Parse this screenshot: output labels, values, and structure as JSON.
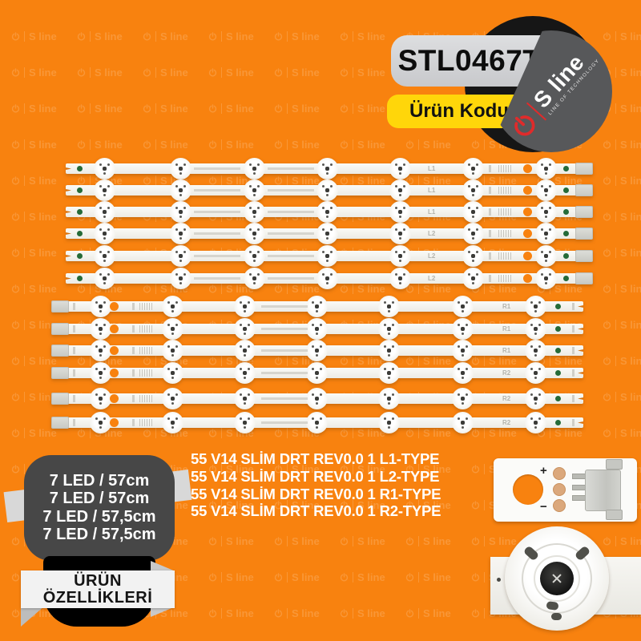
{
  "brand": {
    "watermark_label": "S line",
    "logo_name": "S line",
    "tagline": "LINE OF TECHNOLOGY"
  },
  "badge": {
    "product_code": "STL0467T",
    "code_label": "Ürün Kodu"
  },
  "strips": {
    "count": 12,
    "leds_per_strip": 7,
    "items": [
      {
        "label": "L1",
        "connector_side": "right"
      },
      {
        "label": "L1",
        "connector_side": "right"
      },
      {
        "label": "L1",
        "connector_side": "right"
      },
      {
        "label": "L2",
        "connector_side": "right"
      },
      {
        "label": "L2",
        "connector_side": "right"
      },
      {
        "label": "L2",
        "connector_side": "right"
      },
      {
        "label": "R1",
        "connector_side": "left"
      },
      {
        "label": "R1",
        "connector_side": "left"
      },
      {
        "label": "R1",
        "connector_side": "left"
      },
      {
        "label": "R2",
        "connector_side": "left"
      },
      {
        "label": "R2",
        "connector_side": "left"
      },
      {
        "label": "R2",
        "connector_side": "left"
      }
    ]
  },
  "specs": {
    "lines": [
      "7 LED / 57cm",
      "7 LED / 57cm",
      "7 LED / 57,5cm",
      "7 LED / 57,5cm"
    ],
    "banner": [
      "ÜRÜN",
      "ÖZELLİKLERİ"
    ]
  },
  "types": [
    "55 V14 SLİM DRT REV0.0 1 L1-TYPE",
    "55 V14 SLİM DRT REV0.0 1 L2-TYPE",
    "55 V14 SLİM DRT REV0.0 1 R1-TYPE",
    "55 V14 SLİM DRT REV0.0 1 R2-TYPE"
  ],
  "pcb_closeup": {
    "plus": "+",
    "minus": "−"
  },
  "colors": {
    "background": "#F8820F",
    "accent_yellow": "#FFD60A",
    "logo_red": "#E02B2B",
    "strip_white": "#F2F1EB",
    "badge_black": "#161616",
    "disc_gray": "#57585A",
    "green_dot": "#256B38"
  }
}
